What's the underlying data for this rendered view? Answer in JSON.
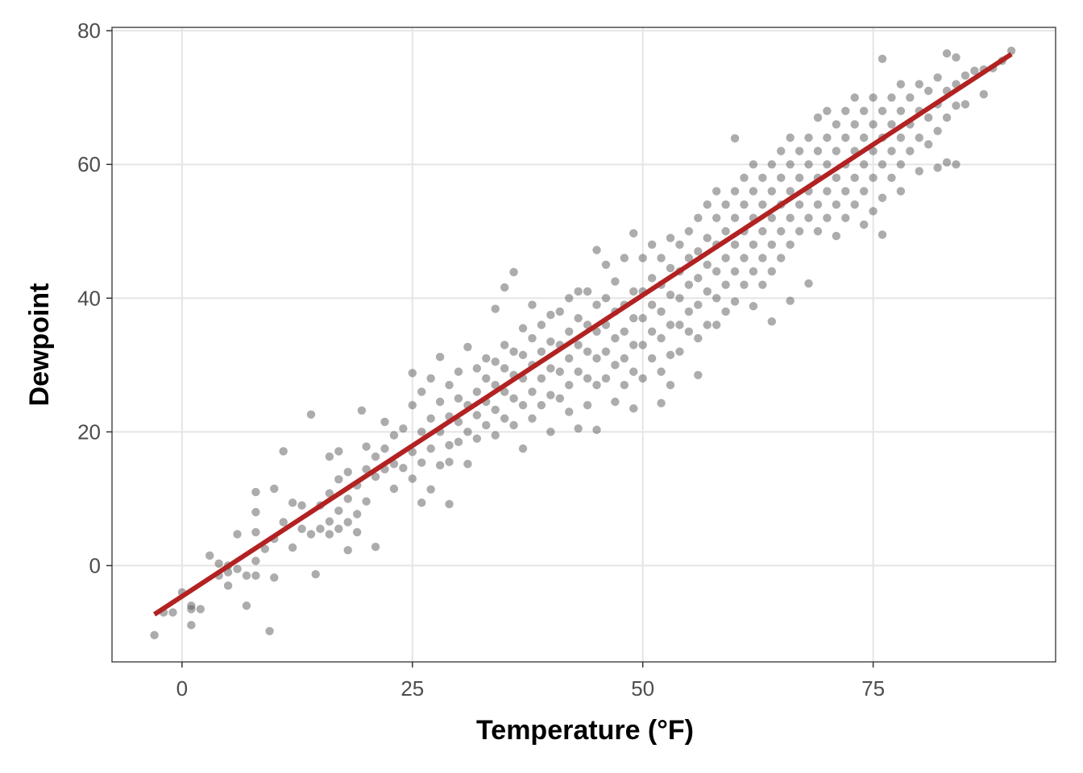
{
  "chart_data": {
    "type": "scatter",
    "xlabel": "Temperature (°F)",
    "ylabel": "Dewpoint",
    "xlim": [
      -7.6,
      94.8
    ],
    "ylim": [
      -14.4,
      80.5
    ],
    "x_ticks": [
      0,
      25,
      50,
      75
    ],
    "y_ticks": [
      0,
      20,
      40,
      60,
      80
    ],
    "x_tick_labels": [
      "0",
      "25",
      "50",
      "75"
    ],
    "y_tick_labels": [
      "0",
      "20",
      "40",
      "60",
      "80"
    ],
    "grid": true,
    "point_color": "#595959",
    "point_opacity": 0.5,
    "fit_line": {
      "color": "#b22222",
      "x": [
        -3,
        90
      ],
      "y": [
        -7.3,
        76.5
      ]
    },
    "points": [
      [
        -3,
        -10.4
      ],
      [
        -2,
        -7
      ],
      [
        -1,
        -7
      ],
      [
        0,
        -4
      ],
      [
        1,
        -6.5
      ],
      [
        1,
        -8.9
      ],
      [
        1,
        -6
      ],
      [
        2,
        -6.5
      ],
      [
        3,
        1.5
      ],
      [
        4,
        0.3
      ],
      [
        4,
        -1.5
      ],
      [
        5,
        -1
      ],
      [
        5,
        -3
      ],
      [
        5,
        0
      ],
      [
        6,
        4.7
      ],
      [
        6,
        -0.5
      ],
      [
        7,
        -6
      ],
      [
        7,
        -1.5
      ],
      [
        8,
        0.7
      ],
      [
        8,
        5
      ],
      [
        8,
        8
      ],
      [
        8,
        11
      ],
      [
        8,
        -1.5
      ],
      [
        9,
        2.5
      ],
      [
        9.5,
        -9.8
      ],
      [
        10,
        11.5
      ],
      [
        10,
        -1.8
      ],
      [
        10,
        4
      ],
      [
        11,
        17.1
      ],
      [
        11,
        6.5
      ],
      [
        12,
        9.4
      ],
      [
        12,
        2.7
      ],
      [
        13,
        5.5
      ],
      [
        13,
        9
      ],
      [
        14,
        4.7
      ],
      [
        14,
        22.6
      ],
      [
        14.5,
        -1.3
      ],
      [
        15,
        5.5
      ],
      [
        15,
        9
      ],
      [
        16,
        6.6
      ],
      [
        16,
        10.8
      ],
      [
        16,
        16.3
      ],
      [
        16,
        4.7
      ],
      [
        17,
        8.2
      ],
      [
        17,
        12.9
      ],
      [
        17,
        17.1
      ],
      [
        17,
        5.5
      ],
      [
        18,
        6.5
      ],
      [
        18,
        10
      ],
      [
        18,
        14
      ],
      [
        18,
        2.3
      ],
      [
        19,
        5
      ],
      [
        19,
        7.7
      ],
      [
        19,
        12
      ],
      [
        19.5,
        23.2
      ],
      [
        20,
        9.6
      ],
      [
        20,
        14.4
      ],
      [
        20,
        17.8
      ],
      [
        21,
        13.3
      ],
      [
        21,
        16.3
      ],
      [
        21,
        2.8
      ],
      [
        22,
        14.4
      ],
      [
        22,
        17.5
      ],
      [
        22,
        21.5
      ],
      [
        23,
        11.5
      ],
      [
        23,
        15.2
      ],
      [
        23,
        19.5
      ],
      [
        24,
        14.6
      ],
      [
        24,
        20.5
      ],
      [
        25,
        13
      ],
      [
        25,
        17
      ],
      [
        25,
        24
      ],
      [
        25,
        28.8
      ],
      [
        26,
        9.4
      ],
      [
        26,
        15.4
      ],
      [
        26,
        20
      ],
      [
        26,
        26
      ],
      [
        27,
        11.4
      ],
      [
        27,
        17.5
      ],
      [
        27,
        22
      ],
      [
        27,
        28
      ],
      [
        28,
        15
      ],
      [
        28,
        20
      ],
      [
        28,
        24.5
      ],
      [
        28,
        31.2
      ],
      [
        29,
        9.2
      ],
      [
        29,
        15.5
      ],
      [
        29,
        18
      ],
      [
        29,
        22.3
      ],
      [
        29,
        27
      ],
      [
        30,
        18.5
      ],
      [
        30,
        21.5
      ],
      [
        30,
        25
      ],
      [
        30,
        29
      ],
      [
        31,
        15.2
      ],
      [
        31,
        20
      ],
      [
        31,
        24
      ],
      [
        31,
        32.7
      ],
      [
        32,
        19
      ],
      [
        32,
        22.5
      ],
      [
        32,
        26
      ],
      [
        32,
        29.5
      ],
      [
        33,
        21
      ],
      [
        33,
        24.5
      ],
      [
        33,
        28
      ],
      [
        33,
        31
      ],
      [
        34,
        19.5
      ],
      [
        34,
        23.3
      ],
      [
        34,
        27
      ],
      [
        34,
        30.5
      ],
      [
        34,
        38.4
      ],
      [
        35,
        22
      ],
      [
        35,
        26
      ],
      [
        35,
        29.5
      ],
      [
        35,
        33
      ],
      [
        35,
        41.6
      ],
      [
        36,
        21
      ],
      [
        36,
        25
      ],
      [
        36,
        28.5
      ],
      [
        36,
        32
      ],
      [
        36,
        43.9
      ],
      [
        37,
        17.5
      ],
      [
        37,
        24
      ],
      [
        37,
        28
      ],
      [
        37,
        31.5
      ],
      [
        37,
        35.5
      ],
      [
        38,
        22
      ],
      [
        38,
        26
      ],
      [
        38,
        30
      ],
      [
        38,
        34
      ],
      [
        38,
        39
      ],
      [
        39,
        24
      ],
      [
        39,
        28
      ],
      [
        39,
        32
      ],
      [
        39,
        36
      ],
      [
        40,
        20
      ],
      [
        40,
        25.5
      ],
      [
        40,
        29.5
      ],
      [
        40,
        33.5
      ],
      [
        40,
        37.5
      ],
      [
        41,
        25
      ],
      [
        41,
        29
      ],
      [
        41,
        33
      ],
      [
        41,
        38
      ],
      [
        42,
        23
      ],
      [
        42,
        27
      ],
      [
        42,
        31
      ],
      [
        42,
        35
      ],
      [
        42,
        40
      ],
      [
        43,
        20.5
      ],
      [
        43,
        29
      ],
      [
        43,
        33
      ],
      [
        43,
        37
      ],
      [
        43,
        41
      ],
      [
        44,
        24
      ],
      [
        44,
        28
      ],
      [
        44,
        32
      ],
      [
        44,
        36
      ],
      [
        44,
        41
      ],
      [
        45,
        20.3
      ],
      [
        45,
        27
      ],
      [
        45,
        31
      ],
      [
        45,
        35
      ],
      [
        45,
        39
      ],
      [
        45,
        47.2
      ],
      [
        46,
        28
      ],
      [
        46,
        32
      ],
      [
        46,
        36
      ],
      [
        46,
        40
      ],
      [
        46,
        45
      ],
      [
        47,
        24.5
      ],
      [
        47,
        30
      ],
      [
        47,
        34
      ],
      [
        47,
        38
      ],
      [
        47,
        42.5
      ],
      [
        48,
        27
      ],
      [
        48,
        31
      ],
      [
        48,
        35
      ],
      [
        48,
        39
      ],
      [
        48,
        46
      ],
      [
        49,
        23.5
      ],
      [
        49,
        29
      ],
      [
        49,
        33
      ],
      [
        49,
        37
      ],
      [
        49,
        41
      ],
      [
        49,
        49.7
      ],
      [
        50,
        28
      ],
      [
        50,
        33
      ],
      [
        50,
        37
      ],
      [
        50,
        41
      ],
      [
        50,
        46
      ],
      [
        51,
        31
      ],
      [
        51,
        35
      ],
      [
        51,
        39
      ],
      [
        51,
        43
      ],
      [
        51,
        48
      ],
      [
        52,
        24.3
      ],
      [
        52,
        29
      ],
      [
        52,
        34
      ],
      [
        52,
        38
      ],
      [
        52,
        42
      ],
      [
        52,
        46
      ],
      [
        53,
        27
      ],
      [
        53,
        31.5
      ],
      [
        53,
        36
      ],
      [
        53,
        40.5
      ],
      [
        53,
        44.5
      ],
      [
        53,
        49
      ],
      [
        54,
        32
      ],
      [
        54,
        36
      ],
      [
        54,
        40
      ],
      [
        54,
        44
      ],
      [
        54,
        48
      ],
      [
        55,
        35
      ],
      [
        55,
        38
      ],
      [
        55,
        42
      ],
      [
        55,
        46
      ],
      [
        55,
        50
      ],
      [
        56,
        28.5
      ],
      [
        56,
        34
      ],
      [
        56,
        39
      ],
      [
        56,
        43
      ],
      [
        56,
        47
      ],
      [
        56,
        52
      ],
      [
        57,
        36
      ],
      [
        57,
        41
      ],
      [
        57,
        45
      ],
      [
        57,
        49
      ],
      [
        57,
        54
      ],
      [
        58,
        36
      ],
      [
        58,
        40
      ],
      [
        58,
        44
      ],
      [
        58,
        48
      ],
      [
        58,
        52
      ],
      [
        58,
        56
      ],
      [
        59,
        38
      ],
      [
        59,
        42
      ],
      [
        59,
        46
      ],
      [
        59,
        50
      ],
      [
        59,
        54
      ],
      [
        60,
        39.5
      ],
      [
        60,
        44
      ],
      [
        60,
        48
      ],
      [
        60,
        52
      ],
      [
        60,
        56
      ],
      [
        60,
        63.9
      ],
      [
        61,
        42
      ],
      [
        61,
        46
      ],
      [
        61,
        50
      ],
      [
        61,
        54
      ],
      [
        61,
        58
      ],
      [
        62,
        38.8
      ],
      [
        62,
        44
      ],
      [
        62,
        48
      ],
      [
        62,
        52
      ],
      [
        62,
        56
      ],
      [
        62,
        60
      ],
      [
        63,
        42
      ],
      [
        63,
        46
      ],
      [
        63,
        50
      ],
      [
        63,
        54
      ],
      [
        63,
        58
      ],
      [
        64,
        36.5
      ],
      [
        64,
        44
      ],
      [
        64,
        48
      ],
      [
        64,
        52
      ],
      [
        64,
        56
      ],
      [
        64,
        60
      ],
      [
        65,
        46
      ],
      [
        65,
        50
      ],
      [
        65,
        54
      ],
      [
        65,
        58
      ],
      [
        65,
        62
      ],
      [
        66,
        39.6
      ],
      [
        66,
        48
      ],
      [
        66,
        52
      ],
      [
        66,
        56
      ],
      [
        66,
        60
      ],
      [
        66,
        64
      ],
      [
        67,
        50
      ],
      [
        67,
        54
      ],
      [
        67,
        58
      ],
      [
        67,
        62
      ],
      [
        68,
        42.2
      ],
      [
        68,
        52
      ],
      [
        68,
        56
      ],
      [
        68,
        60
      ],
      [
        68,
        64
      ],
      [
        69,
        50
      ],
      [
        69,
        54
      ],
      [
        69,
        58
      ],
      [
        69,
        62
      ],
      [
        69,
        67
      ],
      [
        70,
        52
      ],
      [
        70,
        56
      ],
      [
        70,
        60
      ],
      [
        70,
        64
      ],
      [
        70,
        68
      ],
      [
        71,
        49.3
      ],
      [
        71,
        54
      ],
      [
        71,
        58
      ],
      [
        71,
        62
      ],
      [
        71,
        66
      ],
      [
        72,
        52
      ],
      [
        72,
        56
      ],
      [
        72,
        60
      ],
      [
        72,
        64
      ],
      [
        72,
        68
      ],
      [
        73,
        54
      ],
      [
        73,
        58
      ],
      [
        73,
        62
      ],
      [
        73,
        66
      ],
      [
        73,
        70
      ],
      [
        74,
        51
      ],
      [
        74,
        56
      ],
      [
        74,
        60
      ],
      [
        74,
        64
      ],
      [
        74,
        68
      ],
      [
        75,
        53
      ],
      [
        75,
        58
      ],
      [
        75,
        62
      ],
      [
        75,
        66
      ],
      [
        75,
        70
      ],
      [
        76,
        49.5
      ],
      [
        76,
        55
      ],
      [
        76,
        60
      ],
      [
        76,
        64
      ],
      [
        76,
        68
      ],
      [
        76,
        75.8
      ],
      [
        77,
        58
      ],
      [
        77,
        62
      ],
      [
        77,
        66
      ],
      [
        77,
        70
      ],
      [
        78,
        56
      ],
      [
        78,
        60
      ],
      [
        78,
        64
      ],
      [
        78,
        68
      ],
      [
        78,
        72
      ],
      [
        79,
        62
      ],
      [
        79,
        66
      ],
      [
        79,
        70
      ],
      [
        80,
        59
      ],
      [
        80,
        64
      ],
      [
        80,
        68
      ],
      [
        80,
        72
      ],
      [
        81,
        63
      ],
      [
        81,
        67
      ],
      [
        81,
        71
      ],
      [
        82,
        59.5
      ],
      [
        82,
        65
      ],
      [
        82,
        69
      ],
      [
        82,
        73
      ],
      [
        83,
        60.3
      ],
      [
        83,
        67
      ],
      [
        83,
        71
      ],
      [
        83,
        76.6
      ],
      [
        84,
        60
      ],
      [
        84,
        68.8
      ],
      [
        84,
        72
      ],
      [
        84,
        76
      ],
      [
        85,
        69
      ],
      [
        85,
        73.3
      ],
      [
        86,
        74
      ],
      [
        87,
        70.5
      ],
      [
        87,
        74.2
      ],
      [
        88,
        74.4
      ],
      [
        89,
        75.5
      ],
      [
        90,
        77
      ]
    ]
  }
}
